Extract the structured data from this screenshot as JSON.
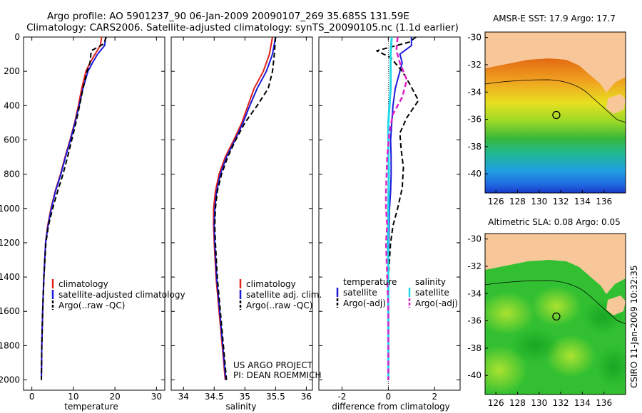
{
  "header": {
    "line1": "Argo profile: AO 5901237_90 06-Jan-2009 20090107_269 35.685S 131.59E",
    "line2": "Climatology: CARS2006. Satellite-adjusted climatology: synTS_20090105.nc (1.1d earlier)"
  },
  "side_stamp": "CSIRO 11-Jan-2009 10:32:35",
  "chart_data": [
    {
      "id": "temperature",
      "type": "line",
      "xlabel": "temperature",
      "xlim": [
        -2,
        32
      ],
      "ylim": [
        2060,
        0
      ],
      "xticks": [
        "0",
        "10",
        "20",
        "30"
      ],
      "yticks": [
        "0",
        "200",
        "400",
        "600",
        "800",
        "1000",
        "1200",
        "1400",
        "1600",
        "1800",
        "2000"
      ],
      "legend": [
        "climatology",
        "satellite-adjusted climatology",
        "Argo(..raw -QC)"
      ],
      "series": [
        {
          "name": "climatology",
          "color": "#e0201a",
          "dash": "",
          "points": [
            [
              16.8,
              0
            ],
            [
              16.5,
              50
            ],
            [
              15.2,
              100
            ],
            [
              14.0,
              150
            ],
            [
              13.0,
              200
            ],
            [
              12.0,
              300
            ],
            [
              11.2,
              400
            ],
            [
              10.3,
              500
            ],
            [
              9.2,
              600
            ],
            [
              8.0,
              700
            ],
            [
              6.9,
              800
            ],
            [
              5.6,
              900
            ],
            [
              4.6,
              1000
            ],
            [
              3.8,
              1100
            ],
            [
              3.3,
              1200
            ],
            [
              2.9,
              1400
            ],
            [
              2.6,
              1600
            ],
            [
              2.4,
              1800
            ],
            [
              2.3,
              2000
            ]
          ]
        },
        {
          "name": "satellite-adjusted climatology",
          "color": "#1a1adc",
          "dash": "",
          "points": [
            [
              17.8,
              0
            ],
            [
              17.5,
              50
            ],
            [
              15.8,
              100
            ],
            [
              14.6,
              150
            ],
            [
              13.5,
              200
            ],
            [
              12.3,
              300
            ],
            [
              11.4,
              400
            ],
            [
              10.4,
              500
            ],
            [
              9.3,
              600
            ],
            [
              8.1,
              700
            ],
            [
              7.0,
              800
            ],
            [
              5.7,
              900
            ],
            [
              4.7,
              1000
            ],
            [
              3.9,
              1100
            ],
            [
              3.3,
              1200
            ],
            [
              2.9,
              1400
            ],
            [
              2.6,
              1600
            ],
            [
              2.4,
              1800
            ],
            [
              2.3,
              2000
            ]
          ]
        },
        {
          "name": "Argo(..raw -QC)",
          "color": "#000000",
          "dash": "7,4",
          "points": [
            [
              17.9,
              0
            ],
            [
              17.3,
              40
            ],
            [
              14.3,
              80
            ],
            [
              14.0,
              150
            ],
            [
              13.3,
              200
            ],
            [
              12.3,
              300
            ],
            [
              11.5,
              400
            ],
            [
              10.6,
              500
            ],
            [
              9.6,
              600
            ],
            [
              8.6,
              700
            ],
            [
              7.5,
              800
            ],
            [
              6.2,
              900
            ],
            [
              5.0,
              1000
            ],
            [
              4.0,
              1100
            ],
            [
              3.4,
              1200
            ],
            [
              2.9,
              1400
            ],
            [
              2.6,
              1600
            ],
            [
              2.4,
              1800
            ],
            [
              2.3,
              2000
            ]
          ]
        }
      ]
    },
    {
      "id": "salinity",
      "type": "line",
      "xlabel": "salinity",
      "xlim": [
        33.8,
        36.1
      ],
      "ylim": [
        2060,
        0
      ],
      "xticks": [
        "34",
        "34.5",
        "35",
        "35.5",
        "36"
      ],
      "legend": [
        "climatology",
        "satellite adj. clim.",
        "Argo(..raw -QC)"
      ],
      "annotation": [
        "US ARGO PROJECT",
        "PI: DEAN ROEMMICH"
      ],
      "series": [
        {
          "name": "climatology",
          "color": "#e0201a",
          "dash": "",
          "points": [
            [
              35.45,
              0
            ],
            [
              35.4,
              100
            ],
            [
              35.3,
              200
            ],
            [
              35.15,
              300
            ],
            [
              35.05,
              400
            ],
            [
              34.95,
              500
            ],
            [
              34.82,
              600
            ],
            [
              34.68,
              700
            ],
            [
              34.58,
              800
            ],
            [
              34.52,
              900
            ],
            [
              34.49,
              1000
            ],
            [
              34.49,
              1100
            ],
            [
              34.5,
              1200
            ],
            [
              34.53,
              1400
            ],
            [
              34.58,
              1600
            ],
            [
              34.63,
              1800
            ],
            [
              34.68,
              2000
            ]
          ]
        },
        {
          "name": "satellite adj. clim.",
          "color": "#1a1adc",
          "dash": "",
          "points": [
            [
              35.5,
              0
            ],
            [
              35.45,
              100
            ],
            [
              35.35,
              200
            ],
            [
              35.2,
              300
            ],
            [
              35.08,
              400
            ],
            [
              34.97,
              500
            ],
            [
              34.84,
              600
            ],
            [
              34.7,
              700
            ],
            [
              34.6,
              800
            ],
            [
              34.54,
              900
            ],
            [
              34.51,
              1000
            ],
            [
              34.5,
              1100
            ],
            [
              34.51,
              1200
            ],
            [
              34.54,
              1400
            ],
            [
              34.59,
              1600
            ],
            [
              34.64,
              1800
            ],
            [
              34.69,
              2000
            ]
          ]
        },
        {
          "name": "Argo(..raw -QC)",
          "color": "#000000",
          "dash": "7,4",
          "points": [
            [
              35.5,
              0
            ],
            [
              35.48,
              100
            ],
            [
              35.45,
              200
            ],
            [
              35.38,
              300
            ],
            [
              35.2,
              400
            ],
            [
              35.0,
              500
            ],
            [
              34.85,
              600
            ],
            [
              34.72,
              700
            ],
            [
              34.62,
              800
            ],
            [
              34.55,
              900
            ],
            [
              34.52,
              1000
            ],
            [
              34.51,
              1100
            ],
            [
              34.52,
              1200
            ],
            [
              34.55,
              1400
            ],
            [
              34.6,
              1600
            ],
            [
              34.65,
              1800
            ],
            [
              34.7,
              2000
            ]
          ]
        }
      ]
    },
    {
      "id": "difference",
      "type": "line",
      "xlabel": "difference from climatology",
      "xlim": [
        -3,
        3.1
      ],
      "ylim": [
        2060,
        0
      ],
      "xticks": [
        "-2",
        "0",
        "2"
      ],
      "legend_left_title": "temperature",
      "legend_left": [
        "satellite",
        "Argo(-adj)"
      ],
      "legend_right_title": "salinity",
      "legend_right": [
        "satellite",
        "Argo(-adj)"
      ],
      "series": [
        {
          "name": "temperature satellite",
          "color": "#1a1adc",
          "dash": "",
          "width": 2,
          "points": [
            [
              1.0,
              0
            ],
            [
              1.0,
              50
            ],
            [
              0.5,
              100
            ],
            [
              0.6,
              150
            ],
            [
              0.5,
              200
            ],
            [
              0.3,
              300
            ],
            [
              0.2,
              400
            ],
            [
              0.15,
              500
            ],
            [
              0.1,
              600
            ],
            [
              0.12,
              700
            ],
            [
              0.12,
              800
            ],
            [
              0.1,
              900
            ],
            [
              0.05,
              1000
            ],
            [
              0.02,
              1200
            ],
            [
              0.0,
              1400
            ],
            [
              0.0,
              1600
            ],
            [
              0.0,
              2000
            ]
          ]
        },
        {
          "name": "temperature Argo(-adj)",
          "color": "#000000",
          "dash": "7,4",
          "width": 2,
          "points": [
            [
              1.2,
              0
            ],
            [
              0.9,
              30
            ],
            [
              -0.5,
              80
            ],
            [
              0.1,
              120
            ],
            [
              0.6,
              200
            ],
            [
              0.95,
              280
            ],
            [
              1.3,
              370
            ],
            [
              0.8,
              470
            ],
            [
              0.5,
              560
            ],
            [
              0.55,
              650
            ],
            [
              0.65,
              760
            ],
            [
              0.6,
              880
            ],
            [
              0.4,
              1000
            ],
            [
              0.2,
              1100
            ],
            [
              0.1,
              1200
            ],
            [
              0.0,
              1400
            ],
            [
              0.0,
              2000
            ]
          ]
        },
        {
          "name": "salinity satellite",
          "color": "#22d8e8",
          "dash": "",
          "width": 3,
          "points": [
            [
              0.15,
              0
            ],
            [
              0.1,
              100
            ],
            [
              0.1,
              200
            ],
            [
              0.1,
              300
            ],
            [
              0.05,
              400
            ],
            [
              0.0,
              500
            ],
            [
              0.0,
              600
            ],
            [
              0.02,
              800
            ],
            [
              0.0,
              1000
            ],
            [
              -0.02,
              1200
            ],
            [
              0.0,
              1400
            ],
            [
              0.0,
              1600
            ],
            [
              0.0,
              2000
            ]
          ]
        },
        {
          "name": "salinity Argo(-adj)",
          "color": "#e020c8",
          "dash": "7,4",
          "width": 2.5,
          "points": [
            [
              0.4,
              0
            ],
            [
              0.35,
              80
            ],
            [
              0.5,
              150
            ],
            [
              0.8,
              250
            ],
            [
              0.6,
              350
            ],
            [
              0.2,
              450
            ],
            [
              0.05,
              550
            ],
            [
              -0.05,
              700
            ],
            [
              -0.1,
              900
            ],
            [
              -0.1,
              1000
            ],
            [
              -0.05,
              1100
            ],
            [
              -0.1,
              1200
            ],
            [
              -0.05,
              1400
            ],
            [
              0.0,
              1600
            ],
            [
              0.0,
              2000
            ]
          ]
        }
      ]
    },
    {
      "id": "sst_map",
      "type": "heatmap",
      "title": "AMSR-E SST: 17.9  Argo: 17.7",
      "xticks": [
        "126",
        "128",
        "130",
        "132",
        "134",
        "136"
      ],
      "yticks": [
        "-30",
        "-32",
        "-34",
        "-36",
        "-38",
        "-40"
      ],
      "xlim": [
        125,
        138
      ],
      "ylim": [
        -41.4,
        -29.6
      ],
      "marker": [
        131.59,
        -35.685
      ]
    },
    {
      "id": "sla_map",
      "type": "heatmap",
      "title": "Altimetric SLA: 0.08  Argo: 0.05",
      "xticks": [
        "126",
        "128",
        "130",
        "132",
        "134",
        "136"
      ],
      "yticks": [
        "-30",
        "-32",
        "-34",
        "-36",
        "-38",
        "-40"
      ],
      "xlim": [
        125,
        138
      ],
      "ylim": [
        -41.4,
        -29.6
      ],
      "marker": [
        131.59,
        -35.685
      ]
    }
  ]
}
